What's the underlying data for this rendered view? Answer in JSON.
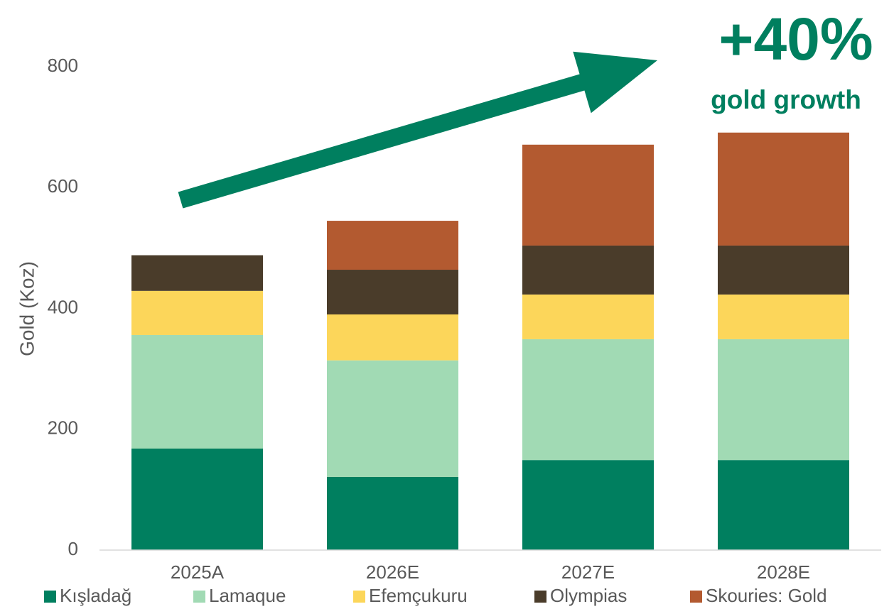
{
  "chart_data": {
    "type": "stacked_bar",
    "ylabel": "Gold  (Koz)",
    "annotations": [
      "+40%",
      "gold growth"
    ],
    "categories": [
      "2025A",
      "2026E",
      "2027E",
      "2028E"
    ],
    "series": [
      {
        "name": "Kışladağ",
        "color": "#007f5f",
        "values": [
          168,
          121,
          149,
          149
        ]
      },
      {
        "name": "Lamaque",
        "color": "#a1dab4",
        "values": [
          188,
          193,
          200,
          200
        ]
      },
      {
        "name": "Efemçukuru",
        "color": "#fcd65a",
        "values": [
          73,
          76,
          74,
          74
        ]
      },
      {
        "name": "Olympias",
        "color": "#4a3c2a",
        "values": [
          59,
          74,
          81,
          81
        ]
      },
      {
        "name": "Skouries: Gold",
        "color": "#b35a30",
        "values": [
          0,
          81,
          167,
          187
        ]
      }
    ],
    "ylim": [
      0,
      800
    ],
    "yticks": [
      0,
      200,
      400,
      600,
      800
    ],
    "grid": false,
    "legend": "bottom",
    "annotation_color": "#007f5f"
  }
}
